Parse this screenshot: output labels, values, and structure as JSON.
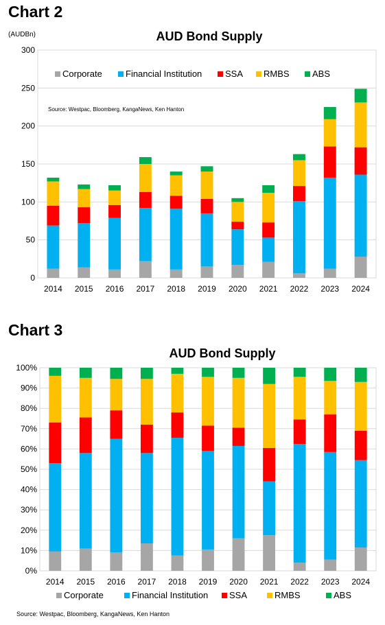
{
  "chart_data": [
    {
      "heading": "Chart 2",
      "type": "bar",
      "stacked": true,
      "title": "AUD Bond Supply",
      "unit_label": "(AUDBn)",
      "source": "Source: Westpac, Bloomberg, KangaNews, Ken Hanton",
      "categories": [
        "2014",
        "2015",
        "2016",
        "2017",
        "2018",
        "2019",
        "2020",
        "2021",
        "2022",
        "2023",
        "2024"
      ],
      "ylim": [
        0,
        300
      ],
      "yticks": [
        "0",
        "50",
        "100",
        "150",
        "200",
        "250",
        "300"
      ],
      "grid": true,
      "legend_position": "top",
      "series": [
        {
          "name": "Corporate",
          "color": "#a6a6a6",
          "values": [
            12,
            14,
            11,
            22,
            11,
            15,
            17,
            21,
            6,
            12,
            28
          ]
        },
        {
          "name": "Financial Institution",
          "color": "#00b0f0",
          "values": [
            57,
            58,
            68,
            70,
            80,
            70,
            47,
            32,
            95,
            120,
            108
          ]
        },
        {
          "name": "SSA",
          "color": "#ff0000",
          "values": [
            26,
            21,
            17,
            21,
            17,
            19,
            10,
            20,
            20,
            41,
            36
          ]
        },
        {
          "name": "RMBS",
          "color": "#ffc000",
          "values": [
            32,
            24,
            19,
            37,
            27,
            36,
            26,
            39,
            34,
            36,
            59
          ]
        },
        {
          "name": "ABS",
          "color": "#00b050",
          "values": [
            5,
            6,
            7,
            9,
            5,
            7,
            5,
            10,
            8,
            16,
            18
          ]
        }
      ]
    },
    {
      "heading": "Chart 3",
      "type": "bar",
      "stacked": true,
      "title": "AUD Bond Supply",
      "source": "Source: Westpac, Bloomberg, KangaNews, Ken Hanton",
      "categories": [
        "2014",
        "2015",
        "2016",
        "2017",
        "2018",
        "2019",
        "2020",
        "2021",
        "2022",
        "2023",
        "2024"
      ],
      "ylim": [
        0,
        100
      ],
      "yticks": [
        "0%",
        "10%",
        "20%",
        "30%",
        "40%",
        "50%",
        "60%",
        "70%",
        "80%",
        "90%",
        "100%"
      ],
      "grid": true,
      "legend_position": "bottom",
      "series": [
        {
          "name": "Corporate",
          "color": "#a6a6a6",
          "values": [
            9.5,
            11,
            9,
            13.5,
            7.5,
            10.5,
            16,
            17.5,
            4,
            5.5,
            11.5
          ]
        },
        {
          "name": "Financial Institution",
          "color": "#00b0f0",
          "values": [
            43.5,
            47,
            56,
            44.5,
            58,
            48.5,
            45.5,
            26.5,
            58.5,
            53,
            43
          ]
        },
        {
          "name": "SSA",
          "color": "#ff0000",
          "values": [
            20,
            17.5,
            14,
            14,
            12.5,
            12.5,
            9,
            16.5,
            12,
            18.5,
            14.5
          ]
        },
        {
          "name": "RMBS",
          "color": "#ffc000",
          "values": [
            23,
            19.5,
            15.5,
            22.5,
            19,
            24,
            24.5,
            31.5,
            21,
            16.5,
            24
          ]
        },
        {
          "name": "ABS",
          "color": "#00b050",
          "values": [
            4,
            5,
            5.5,
            5.5,
            3,
            4.5,
            5,
            8,
            4.5,
            6.5,
            7
          ]
        }
      ]
    }
  ]
}
